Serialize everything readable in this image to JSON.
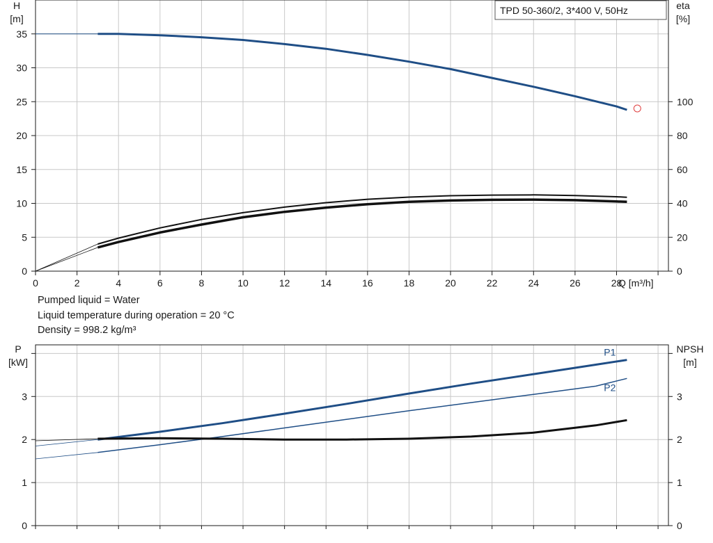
{
  "info": {
    "line1": "Pumped liquid = Water",
    "line2": "Liquid temperature during operation = 20 °C",
    "line3": "Density = 998.2 kg/m³"
  },
  "colors": {
    "blue": "#1f4e86",
    "black": "#111111",
    "marker": "#e04040"
  },
  "chart_data": [
    {
      "type": "line",
      "title": "TPD 50-360/2, 3*400 V, 50Hz",
      "xlabel": "Q [m³/h]",
      "ylabel": "H\n[m]",
      "ylabel_right": "eta\n[%]",
      "xlim": [
        0,
        30.5
      ],
      "ylim": [
        0,
        40
      ],
      "ylim_right": [
        0,
        160
      ],
      "x_ticks": [
        0,
        2,
        4,
        6,
        8,
        10,
        12,
        14,
        16,
        18,
        20,
        22,
        24,
        26,
        28
      ],
      "y_ticks": [
        0,
        5,
        10,
        15,
        20,
        25,
        30,
        35
      ],
      "y_ticks_right": [
        0,
        20,
        40,
        60,
        80,
        100
      ],
      "grid": true,
      "series": [
        {
          "axis": "left",
          "color": "blue",
          "width": 3,
          "x": [
            3,
            4,
            6,
            8,
            10,
            12,
            14,
            16,
            18,
            20,
            22,
            24,
            26,
            28,
            28.5
          ],
          "y": [
            35.0,
            35.0,
            34.8,
            34.5,
            34.1,
            33.5,
            32.8,
            31.9,
            30.9,
            29.8,
            28.5,
            27.2,
            25.8,
            24.3,
            23.8
          ]
        },
        {
          "axis": "left",
          "color": "blue",
          "width": 1,
          "x": [
            0,
            1.5,
            3
          ],
          "y": [
            35.0,
            35.0,
            35.0
          ]
        },
        {
          "axis": "right",
          "color": "black",
          "width": 2,
          "x": [
            3,
            4,
            6,
            8,
            10,
            12,
            14,
            16,
            18,
            20,
            22,
            24,
            26,
            28,
            28.5
          ],
          "y": [
            16.0,
            19.5,
            25.5,
            30.5,
            34.5,
            37.8,
            40.4,
            42.4,
            43.7,
            44.5,
            44.9,
            45.0,
            44.6,
            43.9,
            43.6
          ]
        },
        {
          "axis": "right",
          "color": "black",
          "width": 3.5,
          "x": [
            3,
            4,
            6,
            8,
            10,
            12,
            14,
            16,
            18,
            20,
            22,
            24,
            26,
            28,
            28.5
          ],
          "y": [
            14.0,
            17.2,
            22.8,
            27.5,
            31.8,
            35.0,
            37.5,
            39.5,
            40.9,
            41.7,
            42.1,
            42.2,
            41.9,
            41.1,
            40.9
          ]
        },
        {
          "axis": "right",
          "color": "black",
          "width": 0.8,
          "x": [
            0,
            3
          ],
          "y": [
            0,
            16.0
          ]
        },
        {
          "axis": "right",
          "color": "black",
          "width": 0.8,
          "x": [
            0,
            3
          ],
          "y": [
            0,
            14.0
          ]
        }
      ],
      "markers": [
        {
          "x": 29.0,
          "y": 24.0,
          "color": "marker"
        }
      ]
    },
    {
      "type": "line",
      "title": "",
      "xlabel": "",
      "ylabel": "P\n[kW]",
      "ylabel_right": "NPSH\n[m]",
      "xlim": [
        0,
        30.5
      ],
      "ylim": [
        0,
        4.2
      ],
      "ylim_right": [
        0,
        4.2
      ],
      "y_ticks": [
        0,
        1,
        2,
        3
      ],
      "y_ticks_right": [
        0,
        1,
        2,
        3
      ],
      "grid": true,
      "series": [
        {
          "name": "P1",
          "axis": "left",
          "color": "blue",
          "width": 3,
          "x": [
            3,
            6,
            9,
            12,
            15,
            18,
            21,
            24,
            27,
            28.5
          ],
          "y": [
            2.0,
            2.18,
            2.38,
            2.6,
            2.83,
            3.07,
            3.3,
            3.52,
            3.74,
            3.85
          ]
        },
        {
          "name": "P2",
          "axis": "left",
          "color": "blue",
          "width": 1.5,
          "x": [
            3,
            6,
            9,
            12,
            15,
            18,
            21,
            24,
            27,
            28.5
          ],
          "y": [
            1.7,
            1.88,
            2.07,
            2.27,
            2.47,
            2.67,
            2.86,
            3.05,
            3.24,
            3.42
          ]
        },
        {
          "axis": "right",
          "color": "black",
          "width": 3,
          "x": [
            3,
            6,
            9,
            12,
            15,
            18,
            21,
            24,
            27,
            28.5
          ],
          "y": [
            2.02,
            2.03,
            2.02,
            2.0,
            2.0,
            2.02,
            2.07,
            2.16,
            2.33,
            2.45
          ]
        },
        {
          "axis": "left",
          "color": "blue",
          "width": 0.8,
          "x": [
            0,
            3
          ],
          "y": [
            1.85,
            2.0
          ]
        },
        {
          "axis": "left",
          "color": "blue",
          "width": 0.8,
          "x": [
            0,
            3
          ],
          "y": [
            1.55,
            1.7
          ]
        },
        {
          "axis": "right",
          "color": "black",
          "width": 0.8,
          "x": [
            0,
            3
          ],
          "y": [
            1.97,
            2.02
          ]
        }
      ]
    }
  ]
}
